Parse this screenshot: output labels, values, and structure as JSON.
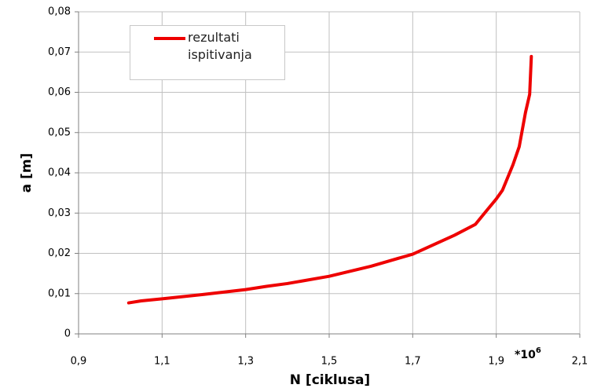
{
  "chart_data": {
    "type": "line",
    "x_label": "N [ciklusa]",
    "y_label": "a [m]",
    "annotation": {
      "base": "*10",
      "exponent": "6"
    },
    "x": [
      1.02,
      1.05,
      1.1,
      1.2,
      1.3,
      1.35,
      1.4,
      1.5,
      1.6,
      1.7,
      1.8,
      1.85,
      1.88,
      1.9,
      1.915,
      1.94,
      1.955,
      1.97,
      1.98,
      1.984
    ],
    "series": [
      {
        "name": "rezultati ispitivanja",
        "color": "#ee0000",
        "values": [
          0.0077,
          0.0082,
          0.0087,
          0.0098,
          0.011,
          0.0118,
          0.0125,
          0.0143,
          0.0168,
          0.0198,
          0.0245,
          0.0272,
          0.031,
          0.0335,
          0.0357,
          0.042,
          0.0465,
          0.055,
          0.0595,
          0.0689
        ]
      }
    ],
    "xlim": [
      0.9,
      2.1
    ],
    "xticks": [
      {
        "value": 0.9,
        "label": "0,9"
      },
      {
        "value": 1.1,
        "label": "1,1"
      },
      {
        "value": 1.3,
        "label": "1,3"
      },
      {
        "value": 1.5,
        "label": "1,5"
      },
      {
        "value": 1.7,
        "label": "1,7"
      },
      {
        "value": 1.9,
        "label": "1,9"
      },
      {
        "value": 2.1,
        "label": "2,1"
      }
    ],
    "ylim": [
      0,
      0.08
    ],
    "yticks": [
      0,
      {
        "value": 0.01,
        "label": "0,01"
      },
      {
        "value": 0.02,
        "label": "0,02"
      },
      {
        "value": 0.03,
        "label": "0,03"
      },
      {
        "value": 0.04,
        "label": "0,04"
      },
      {
        "value": 0.05,
        "label": "0,05"
      },
      {
        "value": 0.06,
        "label": "0,06"
      },
      {
        "value": 0.07,
        "label": "0,07"
      },
      {
        "value": 0.08,
        "label": "0,08"
      }
    ],
    "grid": true
  }
}
